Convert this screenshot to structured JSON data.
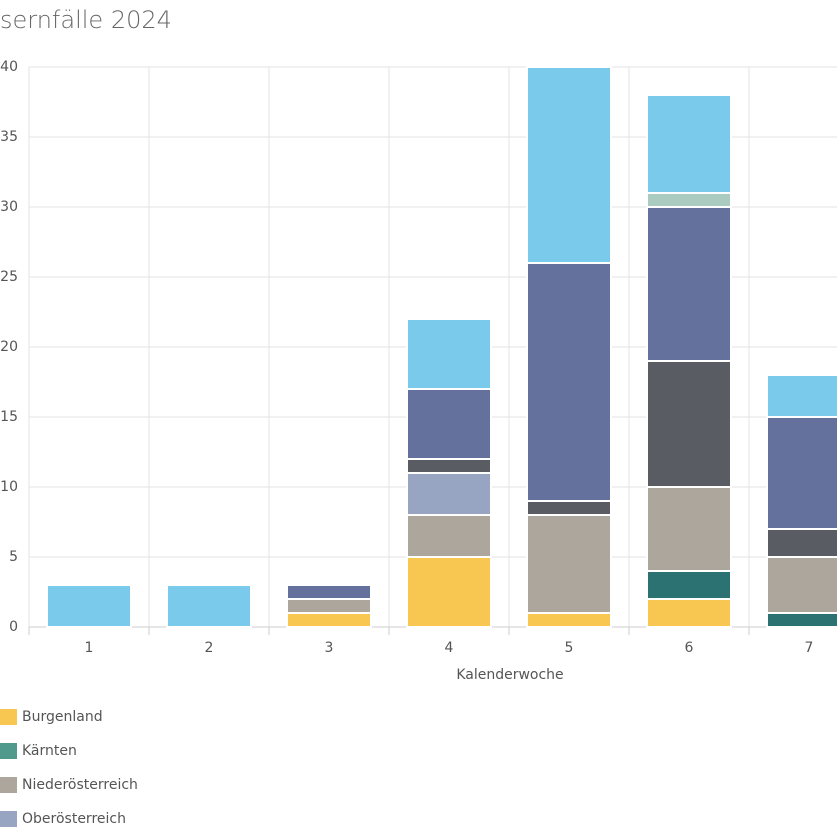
{
  "chart_data": {
    "type": "bar",
    "stacked": true,
    "title": "sernfälle 2024",
    "x_label": "Kalenderwoche",
    "categories": [
      "1",
      "2",
      "3",
      "4",
      "5",
      "6",
      "7"
    ],
    "ylim": [
      0,
      40
    ],
    "yticks": [
      0,
      5,
      10,
      15,
      20,
      25,
      30,
      35,
      40
    ],
    "grid": true,
    "series": [
      {
        "name": "Burgenland",
        "color": "#f7c752",
        "values": [
          0,
          0,
          1,
          5,
          1,
          2,
          0
        ]
      },
      {
        "name": "Kärnten",
        "color": "#2c7272",
        "legend_color": "#4f9a8c",
        "values": [
          0,
          0,
          0,
          0,
          0,
          2,
          1
        ]
      },
      {
        "name": "Niederösterreich",
        "color": "#aca69c",
        "values": [
          0,
          0,
          1,
          3,
          7,
          6,
          4
        ]
      },
      {
        "name": "Oberösterreich",
        "color": "#97a5c2",
        "values": [
          0,
          0,
          0,
          3,
          0,
          0,
          0
        ]
      },
      {
        "color": "#5a5c64",
        "values": [
          0,
          0,
          0,
          1,
          1,
          9,
          2
        ]
      },
      {
        "color": "#63719c",
        "values": [
          0,
          0,
          1,
          5,
          17,
          11,
          8
        ]
      },
      {
        "color": "#a9cbc0",
        "values": [
          0,
          0,
          0,
          0,
          0,
          1,
          0
        ]
      },
      {
        "color": "#7acbeb",
        "values": [
          3,
          3,
          0,
          5,
          14,
          7,
          3
        ]
      }
    ]
  }
}
